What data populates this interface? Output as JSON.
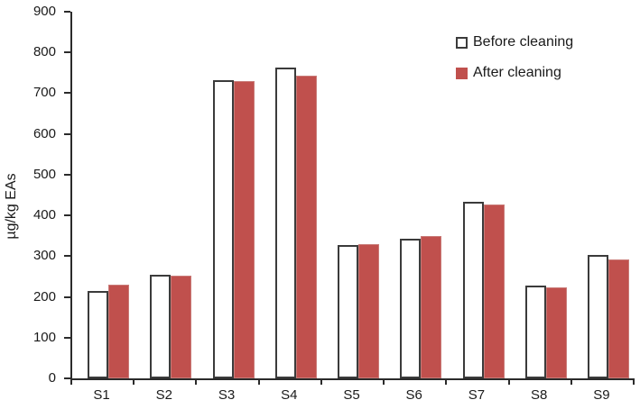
{
  "chart_data": {
    "type": "bar",
    "title": "",
    "xlabel": "",
    "ylabel": "µg/kg EAs",
    "ylim": [
      0,
      900
    ],
    "ytick_step": 100,
    "grid": false,
    "legend_position": "top-right",
    "categories": [
      "S1",
      "S2",
      "S3",
      "S4",
      "S5",
      "S6",
      "S7",
      "S8",
      "S9"
    ],
    "series": [
      {
        "name": "Before cleaning",
        "fill_color": "#FFFFFF",
        "border_color": "#3B3B3B",
        "values": [
          215,
          254,
          733,
          762,
          328,
          343,
          433,
          228,
          303
        ]
      },
      {
        "name": "After cleaning",
        "fill_color": "#C0504D",
        "border_color": "#C97B78",
        "values": [
          231,
          253,
          730,
          742,
          330,
          350,
          426,
          223,
          293
        ]
      }
    ],
    "axis_color": "#2B2B2B"
  }
}
